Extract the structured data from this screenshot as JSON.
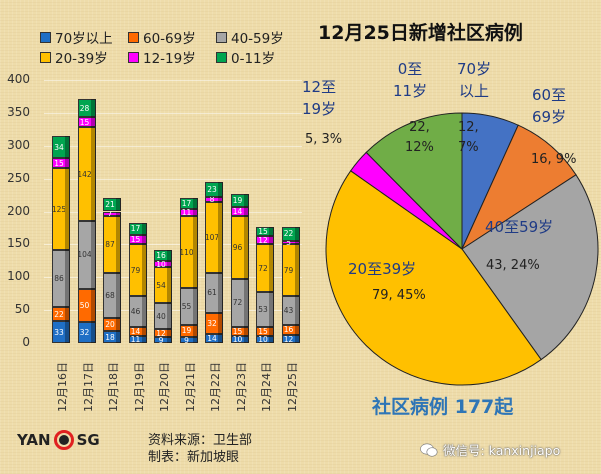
{
  "legend": {
    "items": [
      {
        "label": "70岁以上",
        "color": "#1f6fc5"
      },
      {
        "label": "60-69岁",
        "color": "#ff6a00"
      },
      {
        "label": "40-59岁",
        "color": "#a6a6a6"
      },
      {
        "label": "20-39岁",
        "color": "#ffc000"
      },
      {
        "label": "12-19岁",
        "color": "#ff00ff"
      },
      {
        "label": "0-11岁",
        "color": "#00a550"
      }
    ]
  },
  "bar_chart": {
    "yticks": [
      "0",
      "50",
      "100",
      "150",
      "200",
      "250",
      "300",
      "350",
      "400"
    ],
    "dates": [
      "12月16日",
      "12月17日",
      "12月18日",
      "12月19日",
      "12月20日",
      "12月21日",
      "12月22日",
      "12月23日",
      "12月24日",
      "12月25日"
    ]
  },
  "pie_chart": {
    "title": "12月25日新增社区病例",
    "labels": [
      {
        "cat": "70岁\n以上",
        "val": "12,\n7%"
      },
      {
        "cat": "60至\n69岁",
        "val": "16, 9%"
      },
      {
        "cat": "40至59岁",
        "val": "43, 24%"
      },
      {
        "cat": "20至39岁",
        "val": "79, 45%"
      },
      {
        "cat": "12至\n19岁",
        "val": "5, 3%"
      },
      {
        "cat": "0至\n11岁",
        "val": "22,\n12%"
      }
    ],
    "total_label": "社区病例 177起"
  },
  "footer": {
    "logo_left": "YAN",
    "logo_right": "SG",
    "source": "资料来源：卫生部",
    "made_by": "制表：新加坡眼",
    "wechat": "微信号: kanxinjiapo"
  },
  "chart_data": [
    {
      "type": "bar",
      "stacked": true,
      "title": "",
      "xlabel": "",
      "ylabel": "",
      "ylim": [
        0,
        400
      ],
      "grid": true,
      "legend_position": "top",
      "categories": [
        "12月16日",
        "12月17日",
        "12月18日",
        "12月19日",
        "12月20日",
        "12月21日",
        "12月22日",
        "12月23日",
        "12月24日",
        "12月25日"
      ],
      "series": [
        {
          "name": "70岁以上",
          "color": "#1f6fc5",
          "values": [
            33,
            32,
            18,
            11,
            9,
            9,
            14,
            10,
            10,
            12
          ]
        },
        {
          "name": "60-69岁",
          "color": "#ff6a00",
          "values": [
            22,
            50,
            20,
            14,
            12,
            19,
            32,
            15,
            15,
            16
          ]
        },
        {
          "name": "40-59岁",
          "color": "#a6a6a6",
          "values": [
            86,
            104,
            68,
            46,
            40,
            55,
            61,
            72,
            53,
            43
          ]
        },
        {
          "name": "20-39岁",
          "color": "#ffc000",
          "values": [
            125,
            142,
            87,
            79,
            54,
            110,
            107,
            96,
            72,
            79
          ]
        },
        {
          "name": "12-19岁",
          "color": "#ff00ff",
          "values": [
            15,
            15,
            7,
            15,
            10,
            11,
            8,
            14,
            12,
            5
          ]
        },
        {
          "name": "0-11岁",
          "color": "#00a550",
          "values": [
            34,
            28,
            21,
            17,
            16,
            17,
            23,
            19,
            15,
            22
          ]
        }
      ]
    },
    {
      "type": "pie",
      "title": "12月25日新增社区病例",
      "categories": [
        "70岁以上",
        "60至69岁",
        "40至59岁",
        "20至39岁",
        "12至19岁",
        "0至11岁"
      ],
      "values": [
        12,
        16,
        43,
        79,
        5,
        22
      ],
      "percentages": [
        7,
        9,
        24,
        45,
        3,
        12
      ],
      "colors": [
        "#4472c4",
        "#ed7d31",
        "#a5a5a5",
        "#ffc000",
        "#ff00ff",
        "#70ad47"
      ],
      "total": 177,
      "annotation": "社区病例 177起"
    }
  ]
}
